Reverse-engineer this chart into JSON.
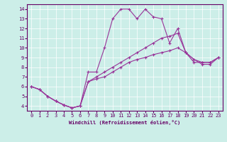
{
  "xlabel": "Windchill (Refroidissement éolien,°C)",
  "background_color": "#cceee8",
  "line_color": "#993399",
  "xlim": [
    -0.5,
    23.5
  ],
  "ylim": [
    3.5,
    14.5
  ],
  "yticks": [
    4,
    5,
    6,
    7,
    8,
    9,
    10,
    11,
    12,
    13,
    14
  ],
  "xticks": [
    0,
    1,
    2,
    3,
    4,
    5,
    6,
    7,
    8,
    9,
    10,
    11,
    12,
    13,
    14,
    15,
    16,
    17,
    18,
    19,
    20,
    21,
    22,
    23
  ],
  "series1_x": [
    0,
    1,
    2,
    3,
    4,
    5,
    6,
    7,
    8,
    9,
    10,
    11,
    12,
    13,
    14,
    15,
    16,
    17,
    18,
    19,
    20,
    21,
    22,
    23
  ],
  "series1_y": [
    6.0,
    5.7,
    5.0,
    4.5,
    4.1,
    3.8,
    4.0,
    7.5,
    7.5,
    10.0,
    13.0,
    14.0,
    14.0,
    13.0,
    14.0,
    13.2,
    13.0,
    10.5,
    12.0,
    9.5,
    8.5,
    8.5,
    8.5,
    9.0
  ],
  "series2_x": [
    0,
    1,
    2,
    3,
    4,
    5,
    6,
    7,
    8,
    9,
    10,
    11,
    12,
    13,
    14,
    15,
    16,
    17,
    18,
    19,
    20,
    21,
    22,
    23
  ],
  "series2_y": [
    6.0,
    5.7,
    5.0,
    4.5,
    4.1,
    3.8,
    4.0,
    6.5,
    7.0,
    7.5,
    8.0,
    8.5,
    9.0,
    9.5,
    10.0,
    10.5,
    11.0,
    11.2,
    11.5,
    9.5,
    8.8,
    8.5,
    8.5,
    9.0
  ],
  "series3_x": [
    0,
    1,
    2,
    3,
    4,
    5,
    6,
    7,
    8,
    9,
    10,
    11,
    12,
    13,
    14,
    15,
    16,
    17,
    18,
    19,
    20,
    21,
    22,
    23
  ],
  "series3_y": [
    6.0,
    5.7,
    5.0,
    4.5,
    4.1,
    3.8,
    4.0,
    6.5,
    6.8,
    7.0,
    7.5,
    8.0,
    8.5,
    8.8,
    9.0,
    9.3,
    9.5,
    9.7,
    10.0,
    9.5,
    8.8,
    8.3,
    8.3,
    9.0
  ]
}
